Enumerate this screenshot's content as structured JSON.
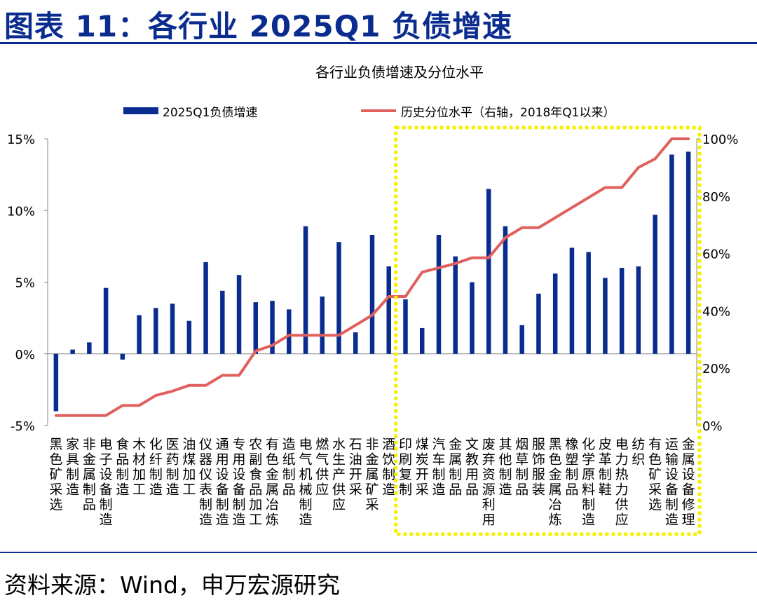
{
  "figure_title": "图表 11：各行业 2025Q1 负债增速",
  "source": "资料来源：Wind，申万宏源研究",
  "colors": {
    "bar": "#0b2c8f",
    "line": "#e0605d",
    "highlight": "#f5f000",
    "heading": "#0b2c8f"
  },
  "chart_data": {
    "type": "bar",
    "title": "各行业负债增速及分位水平",
    "categories": [
      "黑色矿采选",
      "家具制造",
      "非金属制品",
      "电子设备制造",
      "食品制造",
      "木材加工",
      "化纤制造",
      "医药制造",
      "油煤加工",
      "仪器仪表制造",
      "通用设备制造",
      "专用设备制造",
      "农副食品加工",
      "有色金属冶炼",
      "造纸制品",
      "电气机械制造",
      "燃气供应",
      "水生产供应",
      "石油开采",
      "非金属矿采",
      "酒饮制造",
      "印刷复制",
      "煤炭开采",
      "汽车制造",
      "金属制品",
      "文教用品",
      "废弃资源利用",
      "其他制造",
      "烟草制品",
      "服饰服装",
      "黑色金属冶炼",
      "橡塑制品",
      "化学原料制造",
      "皮革制鞋",
      "电力热力供应",
      "纺织",
      "有色矿采选",
      "运输设备制造",
      "金属设备修理"
    ],
    "series": [
      {
        "name": "2025Q1负债增速",
        "axis": "left",
        "type": "bar",
        "values": [
          -4.0,
          0.3,
          0.8,
          4.6,
          -0.4,
          2.7,
          3.2,
          3.5,
          2.3,
          6.4,
          4.4,
          5.5,
          3.6,
          3.7,
          3.1,
          8.9,
          4.0,
          7.8,
          1.5,
          8.3,
          6.1,
          3.8,
          1.8,
          8.3,
          6.8,
          5.0,
          11.5,
          8.9,
          2.0,
          4.2,
          5.6,
          7.4,
          7.1,
          5.3,
          6.0,
          6.1,
          9.7,
          13.9,
          14.1
        ]
      },
      {
        "name": "历史分位水平（右轴，2018年Q1以来）",
        "axis": "right",
        "type": "line",
        "values": [
          3.5,
          3.5,
          3.5,
          3.5,
          7,
          7,
          10.5,
          12,
          14,
          14,
          17.5,
          17.5,
          26,
          28,
          31.5,
          31.5,
          31.5,
          31.5,
          35,
          38.5,
          45,
          45,
          53.5,
          55,
          56.5,
          58.5,
          58.5,
          65.5,
          69,
          69,
          72.5,
          76,
          79.5,
          83,
          83,
          90,
          93,
          100,
          100
        ]
      }
    ],
    "yleft": {
      "min": -5,
      "max": 15,
      "ticks": [
        -5,
        0,
        5,
        10,
        15
      ],
      "tick_labels": [
        "-5%",
        "0%",
        "5%",
        "10%",
        "15%"
      ]
    },
    "yright": {
      "min": 0,
      "max": 100,
      "ticks": [
        0,
        20,
        40,
        60,
        80,
        100
      ],
      "tick_labels": [
        "0%",
        "20%",
        "40%",
        "60%",
        "80%",
        "100%"
      ]
    },
    "highlight": {
      "from_category": "印刷复制",
      "to_category": "金属设备修理",
      "style": "dashed box"
    },
    "legend": "top-center",
    "grid": false
  }
}
